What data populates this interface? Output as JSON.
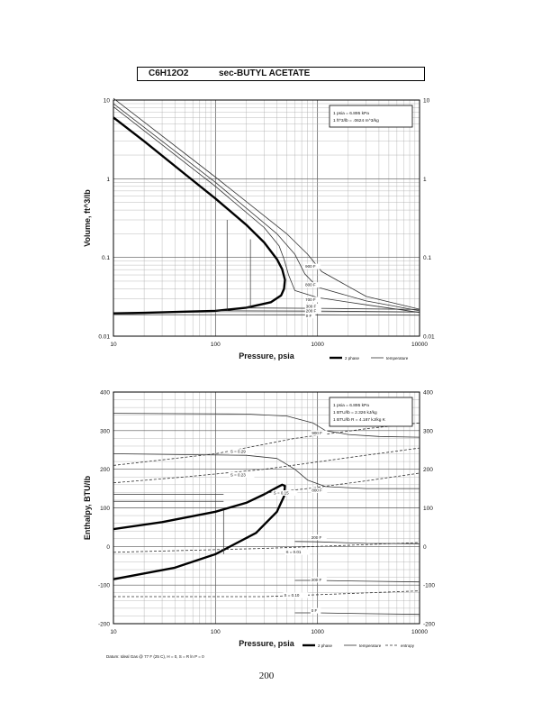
{
  "header": {
    "formula": "C6H12O2",
    "name": "sec-BUTYL ACETATE"
  },
  "page_number": "200",
  "chart_data": [
    {
      "type": "line",
      "xlabel": "Pressure,  psia",
      "ylabel": "Volume, ft^3/lb",
      "x_scale": "log",
      "y_scale": "log",
      "xlim": [
        10,
        10000
      ],
      "ylim": [
        0.01,
        10
      ],
      "x_ticks": [
        "10",
        "100",
        "1000",
        "10000"
      ],
      "y_ticks": [
        "0.01",
        "0.1",
        "1",
        "10"
      ],
      "grid": true,
      "conversions": [
        "1 psia = 6.895 kPa",
        "1 ft^3/lb = .0624 m^3/kg"
      ],
      "legend": [
        "2 phase",
        "temperature"
      ],
      "legend_position": "bottom-right",
      "series": [
        {
          "label": "",
          "style": "2 phase",
          "x": [
            10,
            20,
            50,
            100,
            200,
            300,
            400,
            450,
            480,
            470,
            440,
            350,
            200,
            100,
            50,
            20,
            10
          ],
          "y": [
            6.0,
            3.0,
            1.15,
            0.56,
            0.26,
            0.155,
            0.095,
            0.071,
            0.052,
            0.04,
            0.033,
            0.027,
            0.023,
            0.021,
            0.0205,
            0.0198,
            0.0195
          ]
        },
        {
          "label": "900 F",
          "style": "temperature",
          "x": [
            10,
            100,
            500,
            800,
            1100,
            3000,
            10000
          ],
          "y": [
            10.5,
            1.05,
            0.2,
            0.11,
            0.066,
            0.032,
            0.022
          ]
        },
        {
          "label": "800 F",
          "style": "temperature",
          "x": [
            10,
            100,
            400,
            600,
            750,
            1000,
            3000,
            10000
          ],
          "y": [
            9.0,
            0.9,
            0.2,
            0.11,
            0.062,
            0.042,
            0.028,
            0.021
          ]
        },
        {
          "label": "700 F",
          "style": "temperature",
          "x": [
            10,
            100,
            300,
            420,
            470,
            520,
            600,
            1000,
            3000,
            10000
          ],
          "y": [
            8.2,
            0.8,
            0.24,
            0.14,
            0.095,
            0.06,
            0.038,
            0.031,
            0.025,
            0.02
          ]
        },
        {
          "label": "300 F",
          "style": "temperature",
          "x": [
            200,
            1000,
            10000
          ],
          "y": [
            0.0228,
            0.0226,
            0.0218
          ]
        },
        {
          "label": "200 F",
          "style": "temperature",
          "x": [
            100,
            1000,
            10000
          ],
          "y": [
            0.021,
            0.0208,
            0.0203
          ]
        },
        {
          "label": "0 F",
          "style": "temperature",
          "x": [
            10,
            1000,
            10000
          ],
          "y": [
            0.0188,
            0.0187,
            0.0185
          ]
        }
      ],
      "curve_labels": [
        "900 F",
        "800 F",
        "700 F",
        "300 F",
        "200 F",
        "0 F"
      ]
    },
    {
      "type": "line",
      "xlabel": "Pressure,  psia",
      "ylabel": "Enthalpy, BTU/lb",
      "x_scale": "log",
      "xlim": [
        10,
        10000
      ],
      "ylim": [
        -200,
        400
      ],
      "x_ticks": [
        "10",
        "100",
        "1000",
        "10000"
      ],
      "y_ticks": [
        "-200",
        "-100",
        "0",
        "100",
        "200",
        "300",
        "400"
      ],
      "grid": true,
      "conversions": [
        "1 psia = 6.895 kPa",
        "1 BTU/lb = 2.326 kJ/kg",
        "1 BTU/lb R = 4.187 kJ/kg K"
      ],
      "legend": [
        "2 phase",
        "temperature",
        "entropy"
      ],
      "legend_position": "bottom-right",
      "datum_note": "Datum: Ideal Gas @ 77 F (25 C),  H = 0,  S = R ln P = 0",
      "series": [
        {
          "label": "",
          "style": "2 phase",
          "x": [
            10,
            30,
            100,
            200,
            300,
            400,
            450,
            480,
            470,
            400,
            250,
            100,
            40,
            10
          ],
          "y": [
            45,
            63,
            90,
            113,
            135,
            153,
            160,
            157,
            130,
            90,
            35,
            -20,
            -55,
            -85
          ]
        },
        {
          "label": "900 F",
          "style": "temperature",
          "x": [
            10,
            200,
            500,
            900,
            1200,
            2000,
            4000,
            10000
          ],
          "y": [
            345,
            343,
            338,
            320,
            300,
            290,
            285,
            283
          ]
        },
        {
          "label": "800 F",
          "style": "temperature",
          "x": [
            10,
            200,
            400,
            600,
            800,
            1200,
            3000,
            10000
          ],
          "y": [
            240,
            236,
            228,
            200,
            172,
            155,
            150,
            150
          ]
        },
        {
          "label": "200 F",
          "style": "temperature",
          "x": [
            600,
            1000,
            3000,
            10000
          ],
          "y": [
            13,
            12,
            8,
            7
          ]
        },
        {
          "label": "200 F",
          "style": "temperature",
          "x": [
            600,
            1000,
            3000,
            10000
          ],
          "y": [
            -88,
            -88,
            -90,
            -92
          ]
        },
        {
          "label": "0 F",
          "style": "temperature",
          "x": [
            600,
            1000,
            3000,
            10000
          ],
          "y": [
            -172,
            -172,
            -174,
            -176
          ]
        },
        {
          "label": "S = 0.29",
          "style": "entropy",
          "x": [
            10,
            100,
            600,
            3000,
            10000
          ],
          "y": [
            210,
            240,
            280,
            305,
            320
          ]
        },
        {
          "label": "S = 0.23",
          "style": "entropy",
          "x": [
            10,
            50,
            300,
            2000,
            10000
          ],
          "y": [
            165,
            180,
            200,
            230,
            255
          ]
        },
        {
          "label": "S = 0.15",
          "style": "entropy",
          "x": [
            300,
            800,
            3000,
            10000
          ],
          "y": [
            138,
            150,
            170,
            190
          ]
        },
        {
          "label": "S = 0.01",
          "style": "entropy",
          "x": [
            10,
            300,
            1000,
            10000
          ],
          "y": [
            -15,
            -5,
            0,
            10
          ]
        },
        {
          "label": "S = 0.10",
          "style": "entropy",
          "x": [
            10,
            300,
            1000,
            10000
          ],
          "y": [
            -130,
            -130,
            -125,
            -115
          ]
        }
      ],
      "curve_labels": [
        "S = 0.29",
        "S = 0.23",
        "S = 0.15",
        "S = 0.01",
        "S = 0.10",
        "900 F",
        "800 F",
        "200 F",
        "200 F",
        "0 F"
      ]
    }
  ]
}
